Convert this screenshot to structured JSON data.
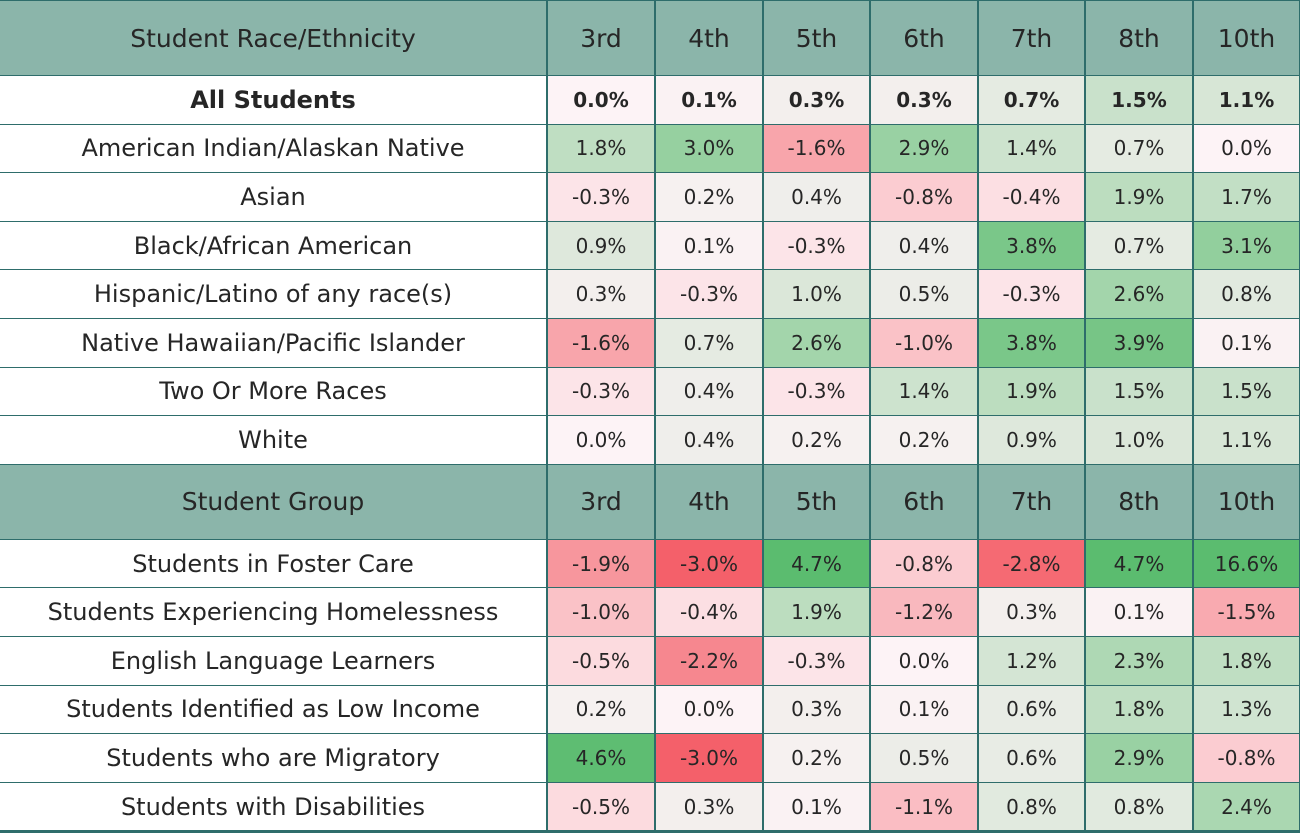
{
  "chart_data": {
    "type": "table",
    "columns": [
      "3rd",
      "4th",
      "5th",
      "6th",
      "7th",
      "8th",
      "10th"
    ],
    "sections": [
      {
        "header": "Student Race/Ethnicity",
        "columns": [
          "3rd",
          "4th",
          "5th",
          "6th",
          "7th",
          "8th",
          "10th"
        ],
        "rows": [
          {
            "label": "All Students",
            "bold": true,
            "values": [
              0.0,
              0.1,
              0.3,
              0.3,
              0.7,
              1.5,
              1.1
            ],
            "display": [
              "0.0%",
              "0.1%",
              "0.3%",
              "0.3%",
              "0.7%",
              "1.5%",
              "1.1%"
            ]
          },
          {
            "label": "American Indian/Alaskan Native",
            "values": [
              1.8,
              3.0,
              -1.6,
              2.9,
              1.4,
              0.7,
              0.0
            ],
            "display": [
              "1.8%",
              "3.0%",
              "-1.6%",
              "2.9%",
              "1.4%",
              "0.7%",
              "0.0%"
            ]
          },
          {
            "label": "Asian",
            "values": [
              -0.3,
              0.2,
              0.4,
              -0.8,
              -0.4,
              1.9,
              1.7
            ],
            "display": [
              "-0.3%",
              "0.2%",
              "0.4%",
              "-0.8%",
              "-0.4%",
              "1.9%",
              "1.7%"
            ]
          },
          {
            "label": "Black/African American",
            "values": [
              0.9,
              0.1,
              -0.3,
              0.4,
              3.8,
              0.7,
              3.1
            ],
            "display": [
              "0.9%",
              "0.1%",
              "-0.3%",
              "0.4%",
              "3.8%",
              "0.7%",
              "3.1%"
            ]
          },
          {
            "label": "Hispanic/Latino of any race(s)",
            "values": [
              0.3,
              -0.3,
              1.0,
              0.5,
              -0.3,
              2.6,
              0.8
            ],
            "display": [
              "0.3%",
              "-0.3%",
              "1.0%",
              "0.5%",
              "-0.3%",
              "2.6%",
              "0.8%"
            ]
          },
          {
            "label": "Native Hawaiian/Pacific Islander",
            "values": [
              -1.6,
              0.7,
              2.6,
              -1.0,
              3.8,
              3.9,
              0.1
            ],
            "display": [
              "-1.6%",
              "0.7%",
              "2.6%",
              "-1.0%",
              "3.8%",
              "3.9%",
              "0.1%"
            ]
          },
          {
            "label": "Two Or More Races",
            "values": [
              -0.3,
              0.4,
              -0.3,
              1.4,
              1.9,
              1.5,
              1.5
            ],
            "display": [
              "-0.3%",
              "0.4%",
              "-0.3%",
              "1.4%",
              "1.9%",
              "1.5%",
              "1.5%"
            ]
          },
          {
            "label": "White",
            "values": [
              0.0,
              0.4,
              0.2,
              0.2,
              0.9,
              1.0,
              1.1
            ],
            "display": [
              "0.0%",
              "0.4%",
              "0.2%",
              "0.2%",
              "0.9%",
              "1.0%",
              "1.1%"
            ]
          }
        ]
      },
      {
        "header": "Student Group",
        "columns": [
          "3rd",
          "4th",
          "5th",
          "6th",
          "7th",
          "8th",
          "10th"
        ],
        "rows": [
          {
            "label": "Students in Foster Care",
            "values": [
              -1.9,
              -3.0,
              4.7,
              -0.8,
              -2.8,
              4.7,
              16.6
            ],
            "display": [
              "-1.9%",
              "-3.0%",
              "4.7%",
              "-0.8%",
              "-2.8%",
              "4.7%",
              "16.6%"
            ]
          },
          {
            "label": "Students Experiencing Homelessness",
            "values": [
              -1.0,
              -0.4,
              1.9,
              -1.2,
              0.3,
              0.1,
              -1.5
            ],
            "display": [
              "-1.0%",
              "-0.4%",
              "1.9%",
              "-1.2%",
              "0.3%",
              "0.1%",
              "-1.5%"
            ]
          },
          {
            "label": "English Language Learners",
            "values": [
              -0.5,
              -2.2,
              -0.3,
              0.0,
              1.2,
              2.3,
              1.8
            ],
            "display": [
              "-0.5%",
              "-2.2%",
              "-0.3%",
              "0.0%",
              "1.2%",
              "2.3%",
              "1.8%"
            ]
          },
          {
            "label": "Students Identified as Low Income",
            "values": [
              0.2,
              0.0,
              0.3,
              0.1,
              0.6,
              1.8,
              1.3
            ],
            "display": [
              "0.2%",
              "0.0%",
              "0.3%",
              "0.1%",
              "0.6%",
              "1.8%",
              "1.3%"
            ]
          },
          {
            "label": "Students who are Migratory",
            "values": [
              4.6,
              -3.0,
              0.2,
              0.5,
              0.6,
              2.9,
              -0.8
            ],
            "display": [
              "4.6%",
              "-3.0%",
              "0.2%",
              "0.5%",
              "0.6%",
              "2.9%",
              "-0.8%"
            ]
          },
          {
            "label": "Students with Disabilities",
            "values": [
              -0.5,
              0.3,
              0.1,
              -1.1,
              0.8,
              0.8,
              2.4
            ],
            "display": [
              "-0.5%",
              "0.3%",
              "0.1%",
              "-1.1%",
              "0.8%",
              "0.8%",
              "2.4%"
            ]
          }
        ]
      }
    ],
    "colors": {
      "header_bg": "#8bb5aa",
      "grid_line": "#2e6d6b",
      "negative": "#f4606a",
      "neutral": "#fdf3f6",
      "positive": "#5bbc6f"
    }
  }
}
